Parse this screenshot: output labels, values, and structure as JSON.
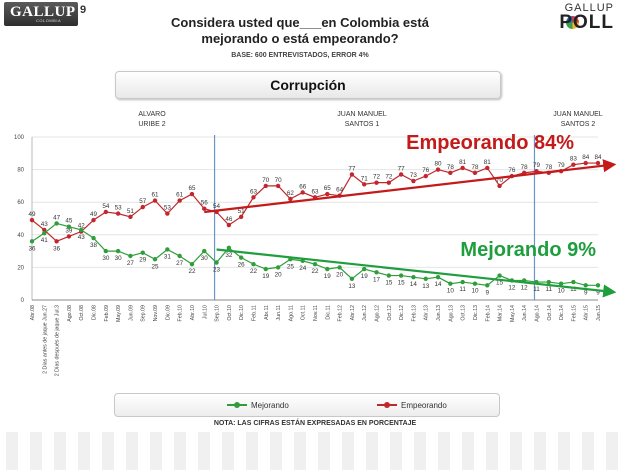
{
  "header": {
    "brand": "GALLUP",
    "country": "COLOMBIA",
    "page_number": "9",
    "poll_brand_top": "GALLUP",
    "poll_brand_bottom": "POLL",
    "question_line1": "Considera usted que___en Colombia está",
    "question_line2": "mejorando o está empeorando?",
    "base_text": "BASE: 600 ENTREVISTADOS, ERROR 4%"
  },
  "section_title": "Corrupción",
  "legend": {
    "mejorando": "Mejorando",
    "empeorando": "Empeorando"
  },
  "note": "NOTA: LAS CIFRAS ESTÁN EXPRESADAS EN PORCENTAJE",
  "colors": {
    "empeorando": "#c1272d",
    "mejorando": "#2f9e3a",
    "trend_red": "#c41a1a",
    "trend_green": "#1f9e3d",
    "divider": "#6a95c9"
  },
  "chart_data": {
    "type": "line",
    "ylim": [
      0,
      100
    ],
    "yticks": [
      0,
      20,
      40,
      60,
      80,
      100
    ],
    "grid": true,
    "legend_position": "bottom",
    "categories": [
      "Abr.08",
      "2 Días antes de jaque Jun.27",
      "2 Días después de jaque Jul.3",
      "Ago.08",
      "Oct.08",
      "Dic.08",
      "Feb.09",
      "May.09",
      "Jun.09",
      "Sep.09",
      "Nov.09",
      "Dic.09",
      "Feb.10",
      "Abr.10",
      "Jul.10",
      "Sep.10",
      "Oct.10",
      "Dic.10",
      "Feb.11",
      "Abr.11",
      "Jun.11",
      "Ago.11",
      "Oct.11",
      "Nov.11",
      "Dic.11",
      "Feb.12",
      "Abr.12",
      "Jun.12",
      "Ago.12",
      "Oct.12",
      "Dic.12",
      "Feb.13",
      "Abr.13",
      "Jun.13",
      "Ago.13",
      "Oct.13",
      "Dic.13",
      "Feb.14",
      "Mar.14",
      "May.14",
      "Jun.14",
      "Ago.14",
      "Oct.14",
      "Dic.14",
      "Feb.15",
      "Abr.15",
      "Jun.15"
    ],
    "series": [
      {
        "name": "Empeorando",
        "values": [
          49,
          43,
          36,
          39,
          42,
          49,
          54,
          53,
          51,
          57,
          61,
          53,
          61,
          65,
          56,
          54,
          46,
          51,
          63,
          70,
          70,
          62,
          66,
          63,
          65,
          64,
          77,
          71,
          72,
          72,
          77,
          73,
          76,
          80,
          78,
          81,
          78,
          81,
          70,
          76,
          78,
          79,
          78,
          79,
          83,
          84,
          84
        ]
      },
      {
        "name": "Mejorando",
        "values": [
          36,
          41,
          47,
          45,
          43,
          38,
          30,
          30,
          27,
          29,
          25,
          31,
          27,
          22,
          30,
          23,
          32,
          26,
          22,
          19,
          20,
          25,
          24,
          22,
          19,
          20,
          13,
          19,
          17,
          15,
          15,
          14,
          13,
          14,
          10,
          11,
          10,
          9,
          15,
          12,
          12,
          11,
          11,
          10,
          11,
          9,
          9
        ]
      }
    ],
    "labels_above": {
      "Empeorando": [
        true,
        true,
        false,
        true,
        true,
        true,
        true,
        true,
        true,
        true,
        true,
        true,
        true,
        true,
        true,
        true,
        true,
        true,
        true,
        true,
        true,
        true,
        true,
        true,
        true,
        true,
        true,
        true,
        true,
        true,
        true,
        true,
        true,
        true,
        true,
        true,
        true,
        true,
        true,
        true,
        true,
        true,
        true,
        true,
        true,
        true,
        true
      ],
      "Mejorando": [
        false,
        false,
        true,
        true,
        false,
        false,
        false,
        false,
        false,
        false,
        false,
        false,
        false,
        false,
        false,
        false,
        false,
        false,
        false,
        false,
        false,
        false,
        false,
        false,
        false,
        false,
        false,
        false,
        false,
        false,
        false,
        false,
        false,
        false,
        false,
        false,
        false,
        false,
        false,
        false,
        false,
        false,
        false,
        false,
        false,
        false,
        false
      ]
    },
    "periods": [
      {
        "label_line1": "ALVARO",
        "label_line2": "URIBE 2",
        "start_index": 0
      },
      {
        "label_line1": "JUAN MANUEL",
        "label_line2": "SANTOS 1",
        "start_index": 15
      },
      {
        "label_line1": "JUAN MANUEL",
        "label_line2": "SANTOS 2",
        "start_index": 41
      }
    ],
    "trends": [
      {
        "series": "Empeorando",
        "label": "Empeorando 84%",
        "from_index": 14,
        "to_index": 46,
        "from_value": 54,
        "to_value": 83
      },
      {
        "series": "Mejorando",
        "label": "Mejorando 9%",
        "from_index": 15,
        "to_index": 46,
        "from_value": 31,
        "to_value": 5
      }
    ]
  }
}
